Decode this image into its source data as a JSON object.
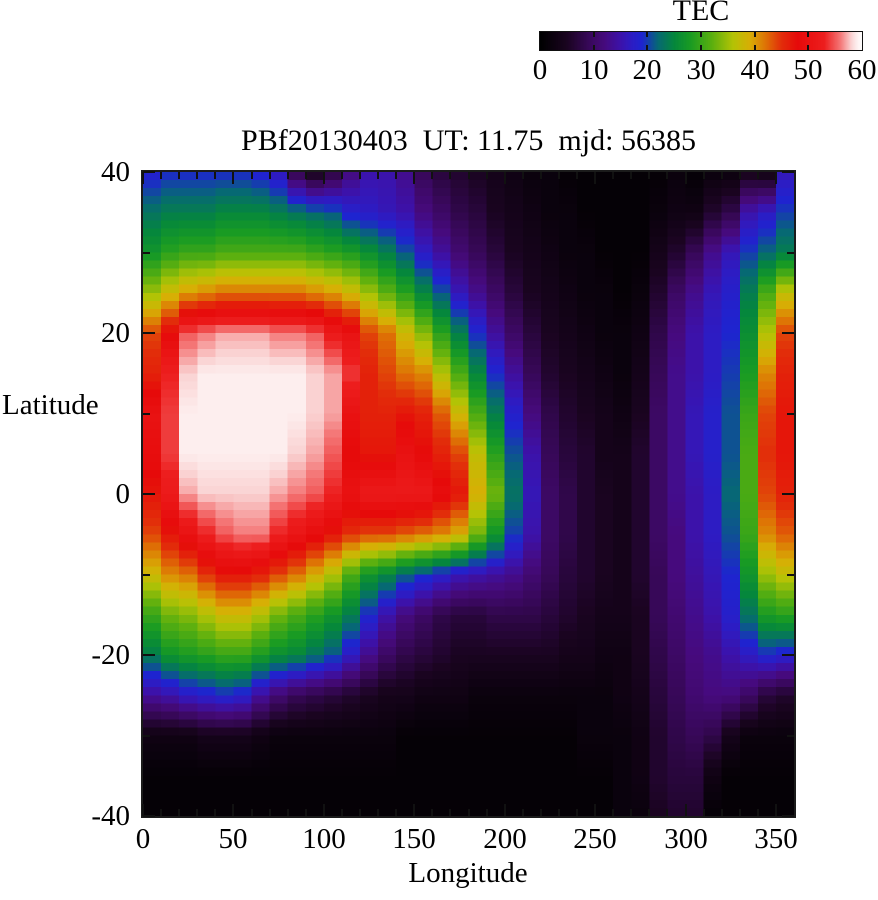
{
  "title": "PBf20130403  UT: 11.75  mjd: 56385",
  "colorbar": {
    "label": "TEC",
    "min": 0,
    "max": 60,
    "tick_values": [
      0,
      10,
      20,
      30,
      40,
      50,
      60
    ]
  },
  "axes": {
    "xlabel": "Longitude",
    "ylabel": "Latitude",
    "xlim": [
      0,
      360
    ],
    "ylim": [
      -40,
      40
    ],
    "x_tick_values": [
      0,
      50,
      100,
      150,
      200,
      250,
      300,
      350
    ],
    "y_tick_values": [
      40,
      20,
      0,
      -20,
      -40
    ],
    "x_minor_step": 10,
    "y_minor_step": 10
  },
  "chart_data": {
    "type": "heatmap",
    "title": "PBf20130403  UT: 11.75  mjd: 56385",
    "dataset_label": "PBf20130403",
    "ut": "11.75",
    "mjd": "56385",
    "xlabel": "Longitude",
    "ylabel": "Latitude",
    "colorbar_label": "TEC",
    "value_range": [
      0,
      60
    ],
    "xlim": [
      0,
      360
    ],
    "ylim": [
      -40,
      40
    ],
    "grid_lons": [
      5,
      15,
      25,
      35,
      45,
      55,
      65,
      75,
      85,
      95,
      105,
      115,
      125,
      135,
      145,
      155,
      165,
      175,
      185,
      195,
      205,
      215,
      225,
      235,
      245,
      255,
      265,
      275,
      285,
      295,
      305,
      315,
      325,
      335,
      345,
      355
    ],
    "grid_lats": [
      40,
      35,
      30,
      25,
      20,
      15,
      10,
      5,
      0,
      -5,
      -10,
      -15,
      -20,
      -25,
      -30,
      -35,
      -40
    ],
    "values_orientation": "values[lon_index][lat_index], lats ordered 40 to -40 (TEC units)",
    "values": [
      [
        18,
        23,
        27,
        35,
        44,
        46,
        50,
        49,
        47,
        44,
        38,
        30,
        24,
        14,
        3,
        1,
        1
      ],
      [
        19,
        24,
        29,
        38,
        48,
        53,
        54,
        54,
        52,
        47,
        41,
        33,
        27,
        15,
        3,
        1,
        1
      ],
      [
        19,
        24,
        30,
        40,
        55,
        58,
        59,
        59,
        57,
        50,
        42,
        34,
        28,
        17,
        3,
        1,
        1
      ],
      [
        19,
        24,
        30,
        41,
        56,
        59,
        59,
        59,
        58,
        53,
        45,
        36,
        29,
        18,
        4,
        1,
        1
      ],
      [
        19,
        25,
        31,
        42,
        57,
        59,
        59,
        59,
        58,
        55,
        47,
        38,
        30,
        19,
        4,
        1,
        1
      ],
      [
        19,
        25,
        31,
        42,
        57,
        59,
        59,
        59,
        58,
        56,
        47,
        38,
        30,
        18,
        4,
        1,
        1
      ],
      [
        18,
        25,
        31,
        42,
        57,
        59,
        59,
        59,
        58,
        56,
        46,
        36,
        28,
        14,
        3,
        1,
        1
      ],
      [
        16,
        24,
        31,
        42,
        56,
        59,
        59,
        59,
        57,
        53,
        44,
        33,
        26,
        11,
        2,
        1,
        1
      ],
      [
        8,
        23,
        31,
        42,
        56,
        59,
        59,
        58,
        56,
        51,
        42,
        31,
        25,
        9,
        2,
        1,
        1
      ],
      [
        4,
        22,
        30,
        41,
        55,
        58,
        58,
        57,
        55,
        49,
        39,
        29,
        23,
        8,
        2,
        1,
        1
      ],
      [
        7,
        21,
        29,
        40,
        52,
        57,
        57,
        55,
        53,
        47,
        36,
        27,
        21,
        7,
        2,
        1,
        1
      ],
      [
        12,
        18,
        28,
        38,
        50,
        54,
        50,
        48,
        50,
        45,
        31,
        24,
        17,
        6,
        2,
        1,
        1
      ],
      [
        15,
        17,
        26,
        35,
        44,
        46,
        46,
        47,
        52,
        44,
        27,
        19,
        13,
        5,
        2,
        1,
        1
      ],
      [
        15,
        16,
        24,
        32,
        42,
        44,
        46,
        47,
        52,
        44,
        25,
        15,
        10,
        4,
        2,
        1,
        1
      ],
      [
        13,
        15,
        21,
        29,
        38,
        42,
        47,
        50,
        52,
        43,
        22,
        12,
        8,
        4,
        1,
        1,
        1
      ],
      [
        9,
        12,
        17,
        25,
        34,
        41,
        46,
        48,
        52,
        42,
        20,
        10,
        7,
        3,
        1,
        1,
        1
      ],
      [
        7,
        10,
        14,
        21,
        29,
        36,
        43,
        46,
        49,
        41,
        18,
        8,
        6,
        3,
        1,
        1,
        1
      ],
      [
        6,
        8,
        11,
        16,
        24,
        31,
        38,
        44,
        47,
        39,
        16,
        7,
        5,
        3,
        1,
        1,
        1
      ],
      [
        5,
        7,
        9,
        13,
        19,
        25,
        31,
        37,
        39,
        33,
        15,
        7,
        5,
        2,
        1,
        1,
        1
      ],
      [
        4,
        5,
        7,
        10,
        14,
        19,
        24,
        29,
        33,
        27,
        14,
        8,
        5,
        2,
        1,
        1,
        1
      ],
      [
        3,
        4,
        5,
        7,
        10,
        14,
        18,
        21,
        23,
        20,
        13,
        8,
        5,
        2,
        1,
        1,
        1
      ],
      [
        2,
        3,
        4,
        5,
        7,
        9,
        12,
        15,
        16,
        15,
        11,
        8,
        5,
        2,
        1,
        1,
        1
      ],
      [
        2,
        2,
        3,
        4,
        5,
        6,
        8,
        9,
        10,
        10,
        9,
        7,
        5,
        2,
        1,
        1,
        1
      ],
      [
        1,
        2,
        2,
        3,
        4,
        5,
        6,
        7,
        8,
        8,
        7,
        6,
        4,
        2,
        1,
        1,
        1
      ],
      [
        1,
        1,
        2,
        2,
        3,
        4,
        5,
        6,
        6,
        6,
        6,
        5,
        4,
        2,
        2,
        1,
        1
      ],
      [
        1,
        1,
        1,
        2,
        2,
        3,
        4,
        4,
        5,
        5,
        5,
        4,
        3,
        2,
        2,
        1,
        1
      ],
      [
        1,
        1,
        1,
        1,
        2,
        2,
        3,
        4,
        4,
        4,
        4,
        4,
        3,
        3,
        2,
        2,
        2
      ],
      [
        1,
        1,
        1,
        2,
        3,
        4,
        5,
        6,
        6,
        6,
        6,
        5,
        5,
        4,
        3,
        3,
        2
      ],
      [
        1,
        2,
        4,
        6,
        8,
        9,
        10,
        10,
        10,
        10,
        9,
        9,
        8,
        7,
        6,
        6,
        5
      ],
      [
        2,
        3,
        6,
        10,
        12,
        13,
        13,
        13,
        13,
        12,
        12,
        11,
        10,
        9,
        8,
        7,
        6
      ],
      [
        1,
        3,
        9,
        13,
        15,
        15,
        16,
        16,
        15,
        15,
        14,
        13,
        12,
        11,
        9,
        7,
        6
      ],
      [
        2,
        6,
        13,
        16,
        17,
        17,
        18,
        18,
        17,
        17,
        16,
        15,
        13,
        12,
        8,
        3,
        1
      ],
      [
        2,
        8,
        16,
        18,
        19,
        20,
        21,
        21,
        22,
        21,
        19,
        18,
        15,
        12,
        4,
        1,
        1
      ],
      [
        4,
        15,
        20,
        24,
        26,
        28,
        30,
        31,
        31,
        30,
        27,
        23,
        17,
        10,
        2,
        1,
        1
      ],
      [
        3,
        17,
        22,
        31,
        36,
        41,
        44,
        45,
        44,
        41,
        35,
        28,
        19,
        7,
        2,
        1,
        1
      ],
      [
        16,
        20,
        24,
        37,
        44,
        46,
        47,
        47,
        46,
        43,
        37,
        29,
        18,
        6,
        2,
        1,
        1
      ]
    ],
    "palette_stops": [
      [
        0,
        0,
        0,
        0
      ],
      [
        5,
        26,
        4,
        32
      ],
      [
        9,
        55,
        8,
        88
      ],
      [
        12,
        70,
        10,
        125
      ],
      [
        15,
        60,
        18,
        170
      ],
      [
        17,
        45,
        28,
        195
      ],
      [
        19,
        30,
        36,
        208
      ],
      [
        22,
        6,
        105,
        115
      ],
      [
        25,
        5,
        135,
        60
      ],
      [
        28,
        25,
        155,
        35
      ],
      [
        32,
        90,
        175,
        15
      ],
      [
        36,
        180,
        195,
        5
      ],
      [
        39,
        215,
        175,
        5
      ],
      [
        42,
        222,
        115,
        5
      ],
      [
        45,
        226,
        45,
        10
      ],
      [
        48,
        230,
        10,
        10
      ],
      [
        53,
        237,
        30,
        30
      ],
      [
        56,
        244,
        120,
        120
      ],
      [
        58,
        250,
        210,
        210
      ],
      [
        59,
        253,
        238,
        238
      ],
      [
        60,
        255,
        255,
        255
      ]
    ],
    "legend_position": "top-right horizontal colorbar",
    "grid": false
  }
}
